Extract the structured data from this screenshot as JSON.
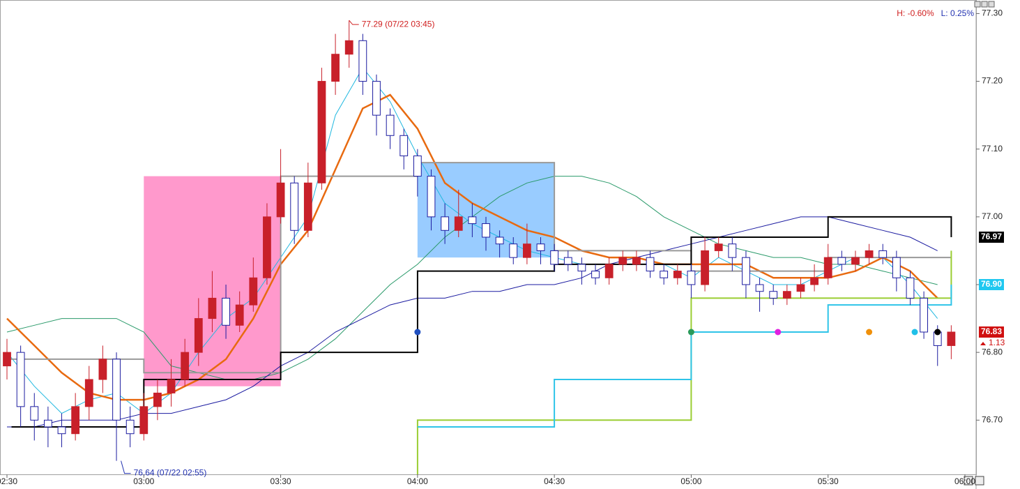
{
  "chart_data": {
    "type": "candlestick",
    "x": [
      "02:30",
      "02:33",
      "02:36",
      "02:39",
      "02:42",
      "02:45",
      "02:48",
      "02:51",
      "02:54",
      "02:57",
      "03:00",
      "03:03",
      "03:06",
      "03:09",
      "03:12",
      "03:15",
      "03:18",
      "03:21",
      "03:24",
      "03:27",
      "03:30",
      "03:33",
      "03:36",
      "03:39",
      "03:42",
      "03:45",
      "03:48",
      "03:51",
      "03:54",
      "03:57",
      "04:00",
      "04:03",
      "04:06",
      "04:09",
      "04:12",
      "04:15",
      "04:18",
      "04:21",
      "04:24",
      "04:27",
      "04:30",
      "04:33",
      "04:36",
      "04:39",
      "04:42",
      "04:45",
      "04:48",
      "04:51",
      "04:54",
      "04:57",
      "05:00",
      "05:03",
      "05:06",
      "05:09",
      "05:12",
      "05:15",
      "05:18",
      "05:21",
      "05:24",
      "05:27",
      "05:30",
      "05:33",
      "05:36",
      "05:39",
      "05:42",
      "05:45",
      "05:48",
      "05:51",
      "05:54",
      "05:57"
    ],
    "open": [
      76.78,
      76.8,
      76.72,
      76.7,
      76.69,
      76.68,
      76.72,
      76.76,
      76.79,
      76.7,
      76.68,
      76.72,
      76.74,
      76.76,
      76.8,
      76.85,
      76.88,
      76.84,
      76.87,
      76.91,
      77.0,
      77.05,
      76.98,
      77.05,
      77.2,
      77.24,
      77.26,
      77.2,
      77.15,
      77.12,
      77.09,
      77.06,
      77.0,
      76.98,
      77.0,
      76.99,
      76.97,
      76.96,
      76.94,
      76.96,
      76.95,
      76.94,
      76.93,
      76.92,
      76.91,
      76.93,
      76.93,
      76.94,
      76.92,
      76.91,
      76.92,
      76.9,
      76.95,
      76.96,
      76.94,
      76.9,
      76.89,
      76.88,
      76.89,
      76.9,
      76.91,
      76.94,
      76.93,
      76.94,
      76.95,
      76.94,
      76.91,
      76.88,
      76.83,
      76.81
    ],
    "high": [
      76.82,
      76.81,
      76.74,
      76.72,
      76.71,
      76.74,
      76.78,
      76.81,
      76.8,
      76.72,
      76.74,
      76.76,
      76.79,
      76.82,
      76.88,
      76.92,
      76.9,
      76.89,
      76.94,
      77.02,
      77.1,
      77.06,
      77.08,
      77.22,
      77.27,
      77.29,
      77.27,
      77.21,
      77.16,
      77.13,
      77.1,
      77.07,
      77.02,
      77.04,
      77.02,
      77.0,
      76.98,
      76.97,
      76.99,
      76.97,
      76.96,
      76.95,
      76.94,
      76.93,
      76.94,
      76.95,
      76.95,
      76.95,
      76.93,
      76.93,
      76.93,
      76.97,
      76.97,
      76.97,
      76.95,
      76.91,
      76.9,
      76.9,
      76.91,
      76.93,
      76.96,
      76.95,
      76.95,
      76.96,
      76.96,
      76.95,
      76.92,
      76.89,
      76.84,
      76.84
    ],
    "low": [
      76.76,
      76.69,
      76.67,
      76.66,
      76.66,
      76.67,
      76.7,
      76.74,
      76.64,
      76.66,
      76.67,
      76.7,
      76.72,
      76.75,
      76.78,
      76.83,
      76.82,
      76.83,
      76.86,
      76.9,
      76.99,
      76.96,
      76.97,
      77.04,
      77.18,
      77.22,
      77.18,
      77.12,
      77.1,
      77.07,
      77.03,
      76.98,
      76.96,
      76.97,
      76.97,
      76.95,
      76.94,
      76.93,
      76.93,
      76.93,
      76.92,
      76.92,
      76.9,
      76.9,
      76.9,
      76.92,
      76.92,
      76.91,
      76.9,
      76.9,
      76.88,
      76.89,
      76.94,
      76.92,
      76.88,
      76.86,
      76.87,
      76.87,
      76.88,
      76.89,
      76.9,
      76.92,
      76.92,
      76.93,
      76.93,
      76.89,
      76.87,
      76.82,
      76.78,
      76.79
    ],
    "close": [
      76.8,
      76.72,
      76.7,
      76.69,
      76.68,
      76.72,
      76.76,
      76.79,
      76.7,
      76.68,
      76.72,
      76.74,
      76.76,
      76.8,
      76.85,
      76.88,
      76.84,
      76.87,
      76.91,
      77.0,
      77.05,
      76.98,
      77.05,
      77.2,
      77.24,
      77.26,
      77.2,
      77.15,
      77.12,
      77.09,
      77.06,
      77.0,
      76.98,
      77.0,
      76.99,
      76.97,
      76.96,
      76.94,
      76.96,
      76.95,
      76.93,
      76.93,
      76.92,
      76.91,
      76.93,
      76.94,
      76.94,
      76.92,
      76.91,
      76.92,
      76.9,
      76.95,
      76.96,
      76.94,
      76.9,
      76.89,
      76.88,
      76.89,
      76.9,
      76.91,
      76.94,
      76.93,
      76.94,
      76.95,
      76.94,
      76.91,
      76.88,
      76.83,
      76.81,
      76.83
    ],
    "up_color": "#c8202a",
    "down_color": "#1c1ca0",
    "ylim": [
      76.62,
      77.32
    ],
    "yticks": [
      {
        "value": 76.7,
        "label": "76.70"
      },
      {
        "value": 76.8,
        "label": "76.80"
      },
      {
        "value": 76.9,
        "label": "76.90"
      },
      {
        "value": 77.0,
        "label": "77.00"
      },
      {
        "value": 77.1,
        "label": "77.10"
      },
      {
        "value": 77.2,
        "label": "77.20"
      },
      {
        "value": 77.3,
        "label": "77.30"
      }
    ],
    "xlim": [
      "02:30",
      "06:00"
    ],
    "xticks": [
      "02:30",
      "03:00",
      "03:30",
      "04:00",
      "04:30",
      "05:00",
      "05:30",
      "06:00"
    ],
    "boxes": [
      {
        "color": "#ff99cc",
        "x": [
          "03:00",
          "03:30"
        ],
        "values": [
          76.75,
          77.06
        ]
      },
      {
        "color": "#99ccff",
        "x": [
          "04:00",
          "04:30"
        ],
        "values": [
          76.94,
          77.08
        ]
      }
    ],
    "overlays": [
      {
        "color": "#2a9a6a",
        "width": 1,
        "x": [
          "02:30",
          "02:36",
          "02:42",
          "02:48",
          "02:54",
          "03:00",
          "03:06",
          "03:12",
          "03:18",
          "03:24",
          "03:30",
          "03:36",
          "03:42",
          "03:48",
          "03:54",
          "04:00",
          "04:06",
          "04:12",
          "04:18",
          "04:24",
          "04:30",
          "04:36",
          "04:42",
          "04:48",
          "04:54",
          "05:00",
          "05:06",
          "05:12",
          "05:18",
          "05:24",
          "05:30",
          "05:36",
          "05:42",
          "05:48",
          "05:54"
        ],
        "values": [
          76.83,
          76.84,
          76.85,
          76.85,
          76.85,
          76.83,
          76.78,
          76.77,
          76.76,
          76.76,
          76.77,
          76.79,
          76.82,
          76.86,
          76.9,
          76.93,
          76.97,
          77.0,
          77.03,
          77.05,
          77.06,
          77.06,
          77.05,
          77.03,
          77.0,
          76.98,
          76.96,
          76.95,
          76.94,
          76.94,
          76.93,
          76.93,
          76.92,
          76.91,
          76.9
        ]
      },
      {
        "color": "#1a1aa0",
        "width": 1,
        "x": [
          "02:30",
          "02:36",
          "02:42",
          "02:48",
          "02:54",
          "03:00",
          "03:06",
          "03:12",
          "03:18",
          "03:24",
          "03:30",
          "03:36",
          "03:42",
          "03:48",
          "03:54",
          "04:00",
          "04:06",
          "04:12",
          "04:18",
          "04:24",
          "04:30",
          "04:36",
          "04:42",
          "04:48",
          "04:54",
          "05:00",
          "05:06",
          "05:12",
          "05:18",
          "05:24",
          "05:30",
          "05:36",
          "05:42",
          "05:48",
          "05:54"
        ],
        "values": [
          76.69,
          76.69,
          76.7,
          76.7,
          76.7,
          76.71,
          76.71,
          76.72,
          76.73,
          76.75,
          76.78,
          76.8,
          76.83,
          76.85,
          76.87,
          76.88,
          76.88,
          76.89,
          76.89,
          76.9,
          76.9,
          76.91,
          76.93,
          76.94,
          76.95,
          76.96,
          76.97,
          76.98,
          76.99,
          77.0,
          77.0,
          76.99,
          76.98,
          76.97,
          76.95
        ]
      },
      {
        "color": "#20b8e0",
        "width": 1,
        "x": [
          "02:30",
          "02:36",
          "02:42",
          "02:48",
          "02:54",
          "03:00",
          "03:06",
          "03:12",
          "03:18",
          "03:24",
          "03:30",
          "03:36",
          "03:42",
          "03:48",
          "03:54",
          "04:00",
          "04:06",
          "04:12",
          "04:18",
          "04:24",
          "04:30",
          "04:36",
          "04:42",
          "04:48",
          "04:54",
          "05:00",
          "05:06",
          "05:12",
          "05:18",
          "05:24",
          "05:30",
          "05:36",
          "05:42",
          "05:48",
          "05:54"
        ],
        "values": [
          76.8,
          76.75,
          76.71,
          76.73,
          76.74,
          76.71,
          76.74,
          76.8,
          76.85,
          76.88,
          76.94,
          77.0,
          77.15,
          77.22,
          77.17,
          77.09,
          77.02,
          76.99,
          76.97,
          76.95,
          76.94,
          76.93,
          76.93,
          76.93,
          76.93,
          76.91,
          76.94,
          76.92,
          76.9,
          76.9,
          76.92,
          76.94,
          76.94,
          76.9,
          76.85
        ]
      },
      {
        "color": "#e86a10",
        "width": 2.5,
        "x": [
          "02:30",
          "02:36",
          "02:42",
          "02:48",
          "02:54",
          "03:00",
          "03:06",
          "03:12",
          "03:18",
          "03:24",
          "03:30",
          "03:36",
          "03:42",
          "03:48",
          "03:54",
          "04:00",
          "04:06",
          "04:12",
          "04:18",
          "04:24",
          "04:30",
          "04:36",
          "04:42",
          "04:48",
          "04:54",
          "05:00",
          "05:06",
          "05:12",
          "05:18",
          "05:24",
          "05:30",
          "05:36",
          "05:42",
          "05:48",
          "05:54"
        ],
        "values": [
          76.85,
          76.81,
          76.77,
          76.74,
          76.73,
          76.73,
          76.74,
          76.76,
          76.79,
          76.85,
          76.93,
          76.98,
          77.07,
          77.16,
          77.18,
          77.13,
          77.05,
          77.02,
          77.0,
          76.98,
          76.97,
          76.95,
          76.94,
          76.94,
          76.93,
          76.93,
          76.93,
          76.93,
          76.91,
          76.91,
          76.91,
          76.92,
          76.94,
          76.92,
          76.88
        ]
      },
      {
        "color": "#999999",
        "width": 2,
        "x": [
          "02:30",
          "03:00",
          "03:00",
          "03:30",
          "03:30",
          "04:00",
          "04:00",
          "04:30",
          "04:30",
          "05:00",
          "05:00",
          "05:30",
          "05:30",
          "05:57"
        ],
        "values": [
          76.79,
          76.79,
          76.77,
          76.77,
          77.06,
          77.06,
          77.08,
          77.08,
          76.95,
          76.95,
          76.92,
          76.92,
          76.94,
          76.94
        ]
      },
      {
        "color": "#000000",
        "width": 2,
        "x": [
          "02:31",
          "03:00",
          "03:00",
          "03:30",
          "03:30",
          "04:00",
          "04:00",
          "04:30",
          "04:30",
          "05:00",
          "05:00",
          "05:30",
          "05:30",
          "05:57",
          "05:57"
        ],
        "values": [
          76.69,
          76.69,
          76.76,
          76.76,
          76.8,
          76.8,
          76.92,
          76.92,
          76.93,
          76.93,
          76.97,
          76.97,
          77.0,
          77.0,
          76.97
        ]
      },
      {
        "color": "#9acd32",
        "width": 2,
        "x": [
          "04:00",
          "04:00",
          "05:00",
          "05:00",
          "05:57",
          "05:57"
        ],
        "values": [
          76.62,
          76.7,
          76.7,
          76.88,
          76.88,
          76.95
        ]
      },
      {
        "color": "#2ec4e8",
        "width": 2,
        "x": [
          "04:00",
          "04:30",
          "04:30",
          "05:00",
          "05:00",
          "05:30",
          "05:30",
          "05:57",
          "05:57"
        ],
        "values": [
          76.69,
          76.69,
          76.76,
          76.76,
          76.83,
          76.83,
          76.87,
          76.87,
          76.9
        ]
      }
    ],
    "markers": {
      "x": [
        "04:00",
        "05:00",
        "05:19",
        "05:39",
        "05:49",
        "05:54"
      ],
      "values": [
        76.83,
        76.83,
        76.83,
        76.83,
        76.83,
        76.83
      ],
      "colors": [
        "#2050c0",
        "#2a9a5a",
        "#e020e0",
        "#f0900a",
        "#20c0e8",
        "#000000"
      ]
    },
    "annotations": [
      {
        "text": "77.29 (07/22 03:45)",
        "x": "03:45",
        "value": 77.29,
        "color": "#d02020"
      },
      {
        "text": "76.64 (07/22 02:55)",
        "x": "02:55",
        "value": 76.64,
        "color": "#2030b0"
      }
    ],
    "price_tags": [
      {
        "label": "76.97",
        "value": 76.97,
        "color": "#000000"
      },
      {
        "label": "76.90",
        "value": 76.9,
        "color": "#20c8f0"
      },
      {
        "label": "76.83",
        "value": 76.83,
        "color": "#d01010"
      }
    ],
    "change_label": "1.13",
    "range_high": "H: -0.60%",
    "range_low": "L: 0.25%"
  }
}
